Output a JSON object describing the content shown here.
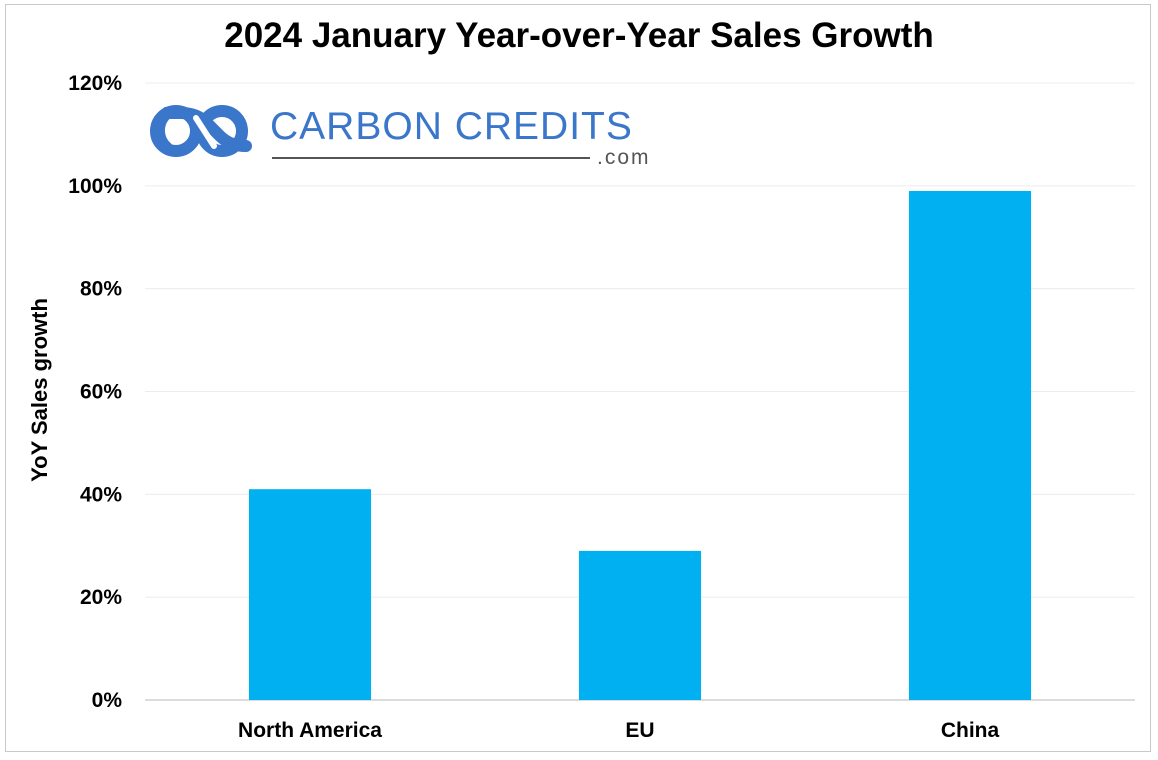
{
  "chart_data": {
    "type": "bar",
    "title": "2024 January Year-over-Year Sales Growth",
    "ylabel": "YoY Sales growth",
    "xlabel": "",
    "categories": [
      "North America",
      "EU",
      "China"
    ],
    "values": [
      41,
      29,
      99
    ],
    "ylim": [
      0,
      120
    ],
    "yticks": [
      0,
      20,
      40,
      60,
      80,
      100,
      120
    ],
    "ytick_format": "%",
    "grid": true,
    "bar_color": "#00b0f0"
  },
  "watermark": {
    "name": "CARBON CREDITS",
    "suffix": ".com",
    "color": "#3a76c9"
  }
}
